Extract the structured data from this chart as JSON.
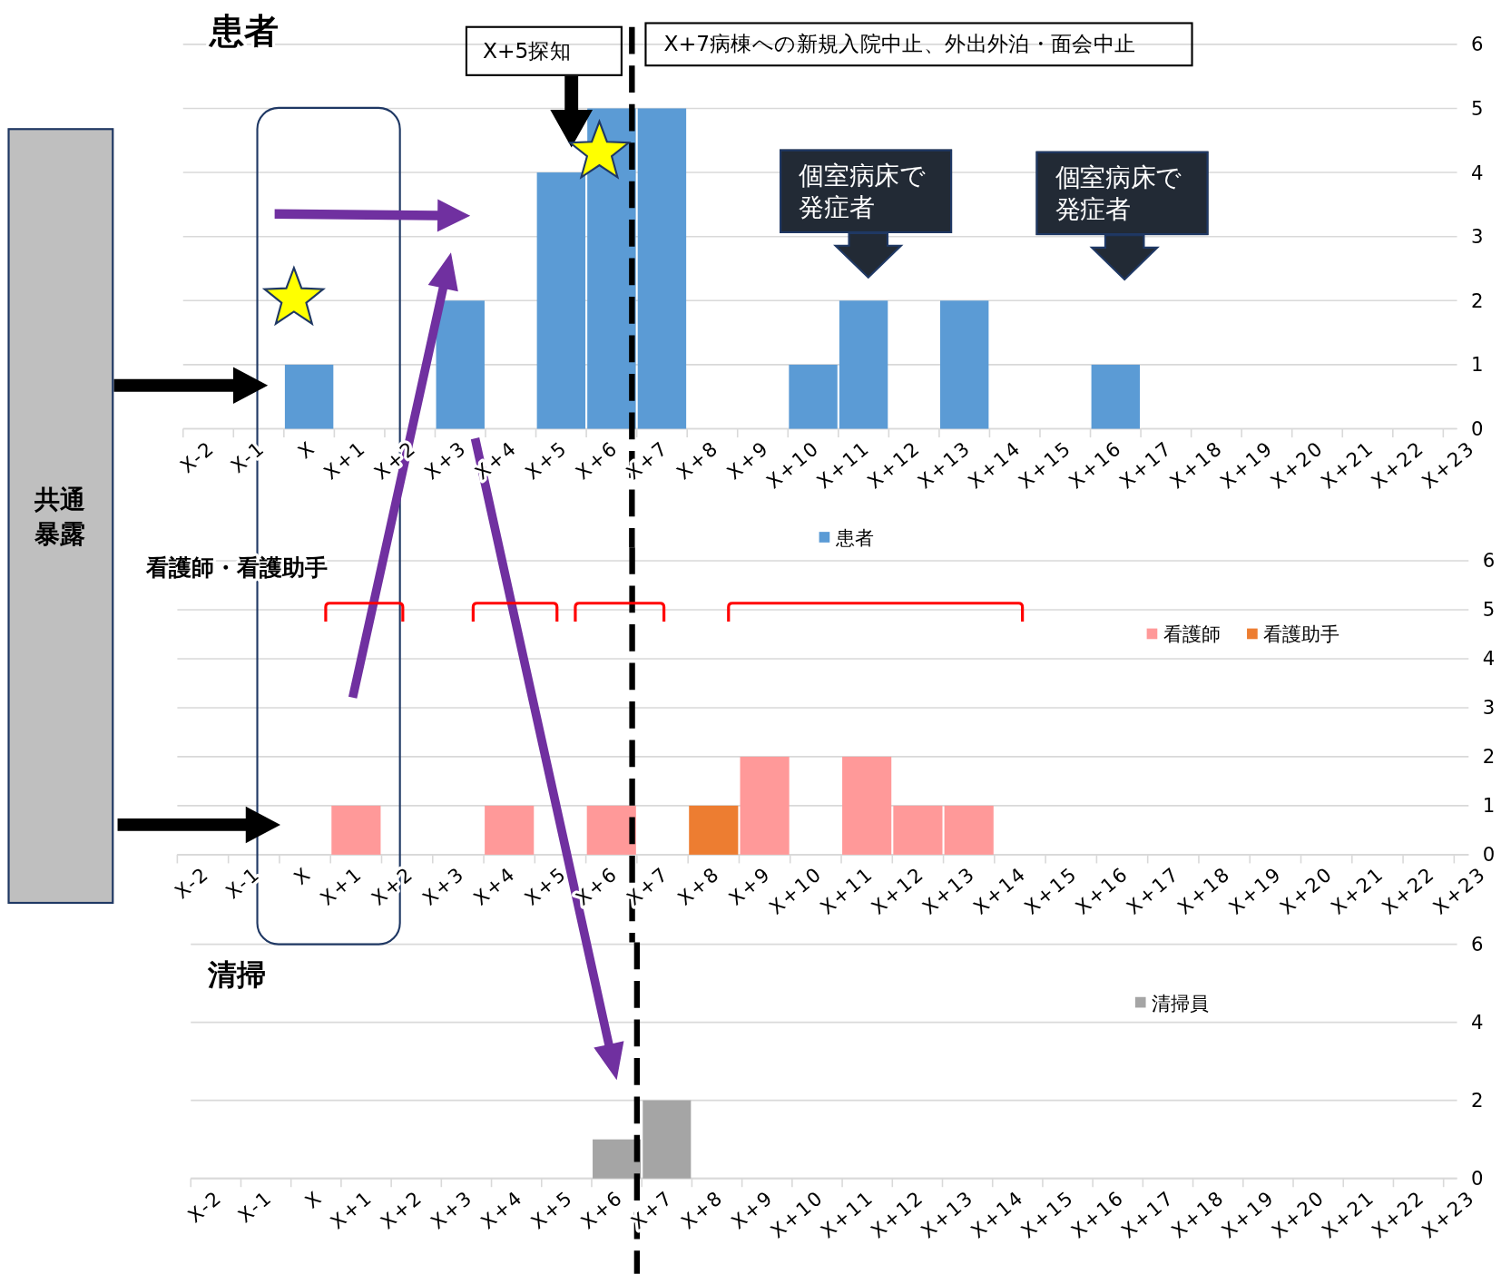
{
  "chart_data": [
    {
      "type": "bar",
      "title": "患者",
      "categories": [
        "X-2",
        "X-1",
        "X",
        "X+1",
        "X+2",
        "X+3",
        "X+4",
        "X+5",
        "X+6",
        "X+7",
        "X+8",
        "X+9",
        "X+10",
        "X+11",
        "X+12",
        "X+13",
        "X+14",
        "X+15",
        "X+16",
        "X+17",
        "X+18",
        "X+19",
        "X+20",
        "X+21",
        "X+22",
        "X+23"
      ],
      "series": [
        {
          "name": "患者",
          "color": "#5b9bd5",
          "values": [
            0,
            0,
            1,
            0,
            0,
            2,
            0,
            4,
            5,
            5,
            0,
            0,
            1,
            2,
            0,
            2,
            0,
            0,
            1,
            0,
            0,
            0,
            0,
            0,
            0,
            0
          ]
        }
      ],
      "ylim": [
        0,
        6
      ],
      "yticks": [
        0,
        1,
        2,
        3,
        4,
        5,
        6
      ],
      "grid": "y",
      "legend": "bottom",
      "ref_lines": [
        {
          "axis": "x",
          "value": "X+7",
          "color": "#000000",
          "line_style": "dashed"
        }
      ],
      "annotations": [
        "X+5探知",
        "X+7病棟への新規入院中止、外出外泊・面会中止",
        "個室病床で発症者",
        "個室病床で発症者",
        "共通暴露"
      ]
    },
    {
      "type": "bar",
      "title": "看護師・看護助手",
      "categories": [
        "X-2",
        "X-1",
        "X",
        "X+1",
        "X+2",
        "X+3",
        "X+4",
        "X+5",
        "X+6",
        "X+7",
        "X+8",
        "X+9",
        "X+10",
        "X+11",
        "X+12",
        "X+13",
        "X+14",
        "X+15",
        "X+16",
        "X+17",
        "X+18",
        "X+19",
        "X+20",
        "X+21",
        "X+22",
        "X+23"
      ],
      "stacked": true,
      "series": [
        {
          "name": "看護師",
          "color": "#ff9999",
          "values": [
            0,
            0,
            0,
            1,
            0,
            0,
            1,
            0,
            1,
            0,
            0,
            2,
            0,
            2,
            1,
            1,
            0,
            0,
            0,
            0,
            0,
            0,
            0,
            0,
            0,
            0
          ]
        },
        {
          "name": "看護助手",
          "color": "#ed7d31",
          "values": [
            0,
            0,
            0,
            0,
            0,
            0,
            0,
            0,
            0,
            0,
            1,
            0,
            0,
            0,
            0,
            0,
            0,
            0,
            0,
            0,
            0,
            0,
            0,
            0,
            0,
            0
          ]
        }
      ],
      "ylim": [
        0,
        6
      ],
      "yticks": [
        0,
        1,
        2,
        3,
        4,
        5,
        6
      ],
      "grid": "y",
      "legend": "top right",
      "ref_lines": [
        {
          "axis": "x",
          "value": "X+7",
          "color": "#000000",
          "line_style": "dashed"
        }
      ]
    },
    {
      "type": "bar",
      "title": "清掃",
      "categories": [
        "X-2",
        "X-1",
        "X",
        "X+1",
        "X+2",
        "X+3",
        "X+4",
        "X+5",
        "X+6",
        "X+7",
        "X+8",
        "X+9",
        "X+10",
        "X+11",
        "X+12",
        "X+13",
        "X+14",
        "X+15",
        "X+16",
        "X+17",
        "X+18",
        "X+19",
        "X+20",
        "X+21",
        "X+22",
        "X+23"
      ],
      "series": [
        {
          "name": "清掃員",
          "color": "#a5a5a5",
          "values": [
            0,
            0,
            0,
            0,
            0,
            0,
            0,
            0,
            1,
            2,
            0,
            0,
            0,
            0,
            0,
            0,
            0,
            0,
            0,
            0,
            0,
            0,
            0,
            0,
            0,
            0
          ]
        }
      ],
      "ylim": [
        0,
        6
      ],
      "yticks": [
        0,
        2,
        4,
        6
      ],
      "grid": "y",
      "legend": "top right",
      "ref_lines": [
        {
          "axis": "x",
          "value": "X+7",
          "color": "#000000",
          "line_style": "dashed"
        }
      ]
    }
  ]
}
